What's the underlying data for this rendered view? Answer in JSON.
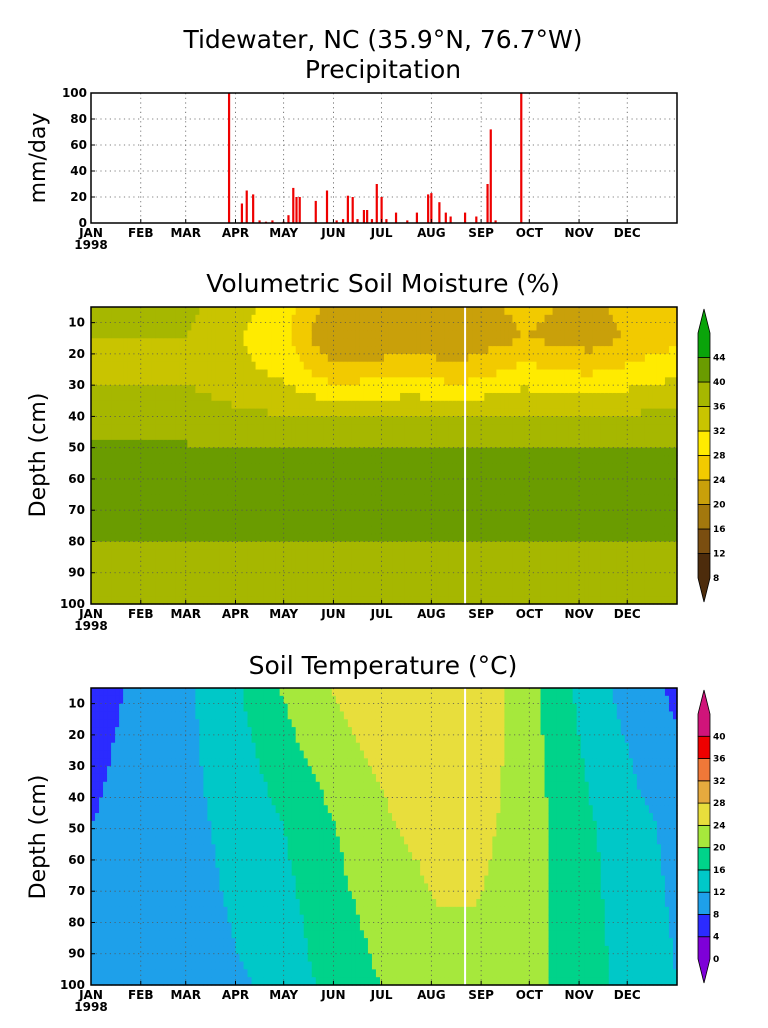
{
  "header": {
    "title": "Tidewater, NC  (35.9°N, 76.7°W)",
    "subtitle": "Precipitation"
  },
  "colors": {
    "precip": "#ee0000",
    "moisture_scale": [
      "#4d2c0c",
      "#7a4e10",
      "#a3780d",
      "#c9a00a",
      "#f2ca00",
      "#ffeb00",
      "#c9c400",
      "#a6b700",
      "#6a9c00",
      "#0aa40a"
    ],
    "temperature_scale": [
      "#7e00d8",
      "#2b2bff",
      "#1ea0ea",
      "#00c8c8",
      "#00d38a",
      "#a6e83c",
      "#e8de3c",
      "#e6aa3e",
      "#f07838",
      "#ee0000",
      "#d0147a"
    ],
    "marker_line": "#ffffff"
  },
  "chart_data": [
    {
      "type": "bar",
      "name": "precipitation",
      "ylabel": "mm/day",
      "xlabels": [
        "JAN",
        "FEB",
        "MAR",
        "APR",
        "MAY",
        "JUN",
        "JUL",
        "AUG",
        "SEP",
        "OCT",
        "NOV",
        "DEC"
      ],
      "year_label": "1998",
      "yticks": [
        "0",
        "20",
        "40",
        "60",
        "80",
        "100"
      ],
      "ylim": [
        0,
        100
      ],
      "xlim": [
        0,
        365
      ],
      "x_units": "day of year 1998",
      "bars": [
        [
          86,
          100
        ],
        [
          94,
          15
        ],
        [
          97,
          25
        ],
        [
          101,
          22
        ],
        [
          105,
          2
        ],
        [
          109,
          1
        ],
        [
          113,
          2
        ],
        [
          120,
          1
        ],
        [
          123,
          6
        ],
        [
          126,
          27
        ],
        [
          128,
          20
        ],
        [
          130,
          20
        ],
        [
          140,
          17
        ],
        [
          147,
          25
        ],
        [
          153,
          2
        ],
        [
          157,
          3
        ],
        [
          160,
          21
        ],
        [
          163,
          20
        ],
        [
          166,
          3
        ],
        [
          170,
          10
        ],
        [
          172,
          10
        ],
        [
          175,
          3
        ],
        [
          178,
          30
        ],
        [
          181,
          20
        ],
        [
          184,
          3
        ],
        [
          190,
          8
        ],
        [
          197,
          2
        ],
        [
          203,
          8
        ],
        [
          210,
          22
        ],
        [
          212,
          23
        ],
        [
          217,
          16
        ],
        [
          221,
          8
        ],
        [
          224,
          5
        ],
        [
          233,
          8
        ],
        [
          240,
          5
        ],
        [
          247,
          30
        ],
        [
          249,
          72
        ],
        [
          252,
          2
        ],
        [
          268,
          100
        ]
      ]
    },
    {
      "type": "heatmap",
      "name": "soil-moisture",
      "title": "Volumetric Soil Moisture (%)",
      "ylabel": "Depth (cm)",
      "xlabels": [
        "JAN",
        "FEB",
        "MAR",
        "APR",
        "MAY",
        "JUN",
        "JUL",
        "AUG",
        "SEP",
        "OCT",
        "NOV",
        "DEC"
      ],
      "year_label": "1998",
      "yticks": [
        "10",
        "20",
        "30",
        "40",
        "50",
        "60",
        "70",
        "80",
        "90",
        "100"
      ],
      "ylim": [
        100,
        5
      ],
      "colorbar_ticks": [
        "8",
        "12",
        "16",
        "20",
        "24",
        "28",
        "32",
        "36",
        "40",
        "44"
      ],
      "levels": [
        8,
        12,
        16,
        20,
        24,
        28,
        32,
        36,
        40,
        44
      ],
      "marker_day": 233,
      "depth_profiles": [
        {
          "day": 0,
          "values": [
            [
              5,
              38
            ],
            [
              15,
              36
            ],
            [
              25,
              35
            ],
            [
              40,
              39
            ],
            [
              48,
              40
            ],
            [
              65,
              40
            ],
            [
              80,
              40
            ],
            [
              86,
              38
            ],
            [
              100,
              38
            ]
          ]
        },
        {
          "day": 60,
          "values": [
            [
              5,
              37
            ],
            [
              15,
              36
            ],
            [
              25,
              35
            ],
            [
              40,
              38
            ],
            [
              48,
              40
            ],
            [
              65,
              40
            ],
            [
              80,
              40
            ],
            [
              86,
              38
            ],
            [
              100,
              38
            ]
          ]
        },
        {
          "day": 120,
          "values": [
            [
              5,
              30
            ],
            [
              15,
              29
            ],
            [
              25,
              31
            ],
            [
              35,
              34
            ],
            [
              44,
              38
            ],
            [
              50,
              40
            ],
            [
              65,
              40
            ],
            [
              80,
              40
            ],
            [
              86,
              38
            ],
            [
              100,
              38
            ]
          ]
        },
        {
          "day": 150,
          "values": [
            [
              5,
              22
            ],
            [
              15,
              20
            ],
            [
              25,
              25
            ],
            [
              35,
              32
            ],
            [
              44,
              38
            ],
            [
              50,
              40
            ],
            [
              65,
              40
            ],
            [
              80,
              40
            ],
            [
              86,
              38
            ],
            [
              100,
              38
            ]
          ]
        },
        {
          "day": 200,
          "values": [
            [
              5,
              24
            ],
            [
              15,
              22
            ],
            [
              25,
              26
            ],
            [
              35,
              33
            ],
            [
              44,
              38
            ],
            [
              50,
              40
            ],
            [
              55,
              42
            ],
            [
              62,
              42
            ],
            [
              66,
              40
            ],
            [
              80,
              40
            ],
            [
              86,
              38
            ],
            [
              100,
              38
            ]
          ]
        },
        {
          "day": 230,
          "values": [
            [
              5,
              22
            ],
            [
              15,
              21
            ],
            [
              25,
              25
            ],
            [
              35,
              32
            ],
            [
              44,
              38
            ],
            [
              50,
              40
            ],
            [
              55,
              42
            ],
            [
              62,
              42
            ],
            [
              66,
              40
            ],
            [
              80,
              40
            ],
            [
              86,
              38
            ],
            [
              100,
              38
            ]
          ]
        },
        {
          "day": 270,
          "values": [
            [
              5,
              25
            ],
            [
              15,
              24
            ],
            [
              25,
              29
            ],
            [
              35,
              34
            ],
            [
              44,
              38
            ],
            [
              50,
              40
            ],
            [
              65,
              40
            ],
            [
              80,
              40
            ],
            [
              86,
              38
            ],
            [
              100,
              38
            ]
          ]
        },
        {
          "day": 310,
          "values": [
            [
              5,
              23
            ],
            [
              15,
              22
            ],
            [
              25,
              27
            ],
            [
              35,
              33
            ],
            [
              44,
              38
            ],
            [
              50,
              40
            ],
            [
              65,
              40
            ],
            [
              80,
              40
            ],
            [
              86,
              38
            ],
            [
              100,
              38
            ]
          ]
        },
        {
          "day": 365,
          "values": [
            [
              5,
              28
            ],
            [
              15,
              27
            ],
            [
              25,
              31
            ],
            [
              35,
              35
            ],
            [
              44,
              39
            ],
            [
              50,
              40
            ],
            [
              65,
              40
            ],
            [
              80,
              40
            ],
            [
              86,
              38
            ],
            [
              100,
              38
            ]
          ]
        }
      ]
    },
    {
      "type": "heatmap",
      "name": "soil-temperature",
      "title": "Soil Temperature (°C)",
      "ylabel": "Depth (cm)",
      "xlabels": [
        "JAN",
        "FEB",
        "MAR",
        "APR",
        "MAY",
        "JUN",
        "JUL",
        "AUG",
        "SEP",
        "OCT",
        "NOV",
        "DEC"
      ],
      "year_label": "1998",
      "yticks": [
        "10",
        "20",
        "30",
        "40",
        "50",
        "60",
        "70",
        "80",
        "90",
        "100"
      ],
      "ylim": [
        100,
        5
      ],
      "colorbar_ticks": [
        "0",
        "4",
        "8",
        "12",
        "16",
        "20",
        "24",
        "28",
        "32",
        "36",
        "40"
      ],
      "levels": [
        0,
        4,
        8,
        12,
        16,
        20,
        24,
        28,
        32,
        36,
        40
      ],
      "marker_day": 233,
      "depth_profiles": [
        {
          "day": 0,
          "values": [
            [
              5,
              6
            ],
            [
              50,
              8
            ],
            [
              100,
              10
            ]
          ]
        },
        {
          "day": 30,
          "values": [
            [
              5,
              9
            ],
            [
              50,
              10
            ],
            [
              100,
              10
            ]
          ]
        },
        {
          "day": 55,
          "values": [
            [
              5,
              11
            ],
            [
              50,
              11
            ],
            [
              100,
              11
            ]
          ]
        },
        {
          "day": 75,
          "values": [
            [
              5,
              13
            ],
            [
              50,
              12
            ],
            [
              100,
              11
            ]
          ]
        },
        {
          "day": 100,
          "values": [
            [
              5,
              17
            ],
            [
              50,
              14
            ],
            [
              100,
              12
            ]
          ]
        },
        {
          "day": 130,
          "values": [
            [
              5,
              22
            ],
            [
              50,
              17
            ],
            [
              100,
              15
            ]
          ]
        },
        {
          "day": 160,
          "values": [
            [
              5,
              25
            ],
            [
              50,
              21
            ],
            [
              100,
              18
            ]
          ]
        },
        {
          "day": 190,
          "values": [
            [
              5,
              27
            ],
            [
              50,
              24
            ],
            [
              100,
              21
            ]
          ]
        },
        {
          "day": 215,
          "values": [
            [
              5,
              28
            ],
            [
              50,
              25
            ],
            [
              100,
              23
            ]
          ]
        },
        {
          "day": 240,
          "values": [
            [
              5,
              27
            ],
            [
              50,
              25
            ],
            [
              100,
              23
            ]
          ]
        },
        {
          "day": 265,
          "values": [
            [
              5,
              23
            ],
            [
              50,
              23
            ],
            [
              100,
              22
            ]
          ]
        },
        {
          "day": 285,
          "values": [
            [
              5,
              19
            ],
            [
              50,
              20
            ],
            [
              100,
              20
            ]
          ]
        },
        {
          "day": 315,
          "values": [
            [
              5,
              13
            ],
            [
              50,
              16
            ],
            [
              100,
              17
            ]
          ]
        },
        {
          "day": 340,
          "values": [
            [
              5,
              10
            ],
            [
              50,
              13
            ],
            [
              100,
              14
            ]
          ]
        },
        {
          "day": 365,
          "values": [
            [
              5,
              7
            ],
            [
              50,
              11
            ],
            [
              100,
              12
            ]
          ]
        }
      ]
    }
  ]
}
